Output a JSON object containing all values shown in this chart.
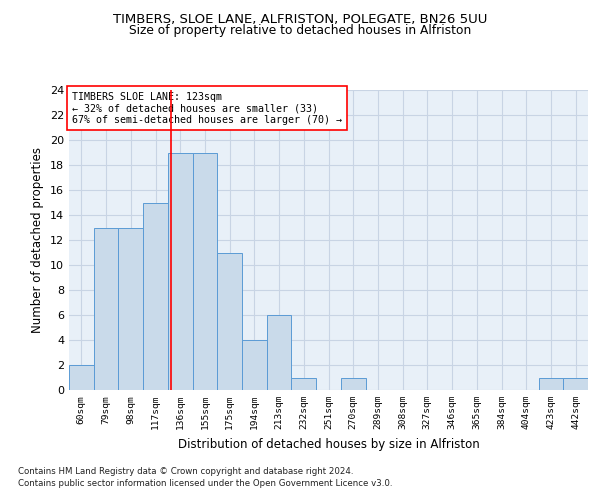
{
  "title1": "TIMBERS, SLOE LANE, ALFRISTON, POLEGATE, BN26 5UU",
  "title2": "Size of property relative to detached houses in Alfriston",
  "xlabel": "Distribution of detached houses by size in Alfriston",
  "ylabel": "Number of detached properties",
  "footnote1": "Contains HM Land Registry data © Crown copyright and database right 2024.",
  "footnote2": "Contains public sector information licensed under the Open Government Licence v3.0.",
  "annotation_line1": "TIMBERS SLOE LANE: 123sqm",
  "annotation_line2": "← 32% of detached houses are smaller (33)",
  "annotation_line3": "67% of semi-detached houses are larger (70) →",
  "bar_labels": [
    "60sqm",
    "79sqm",
    "98sqm",
    "117sqm",
    "136sqm",
    "155sqm",
    "175sqm",
    "194sqm",
    "213sqm",
    "232sqm",
    "251sqm",
    "270sqm",
    "289sqm",
    "308sqm",
    "327sqm",
    "346sqm",
    "365sqm",
    "384sqm",
    "404sqm",
    "423sqm",
    "442sqm"
  ],
  "bar_values": [
    2,
    13,
    13,
    15,
    19,
    19,
    11,
    4,
    6,
    1,
    0,
    1,
    0,
    0,
    0,
    0,
    0,
    0,
    0,
    1,
    1
  ],
  "bar_color": "#c9daea",
  "bar_edgecolor": "#5b9bd5",
  "grid_color": "#c8d4e4",
  "background_color": "#e8f0f8",
  "red_line_x": 3.62,
  "ylim": [
    0,
    24
  ],
  "yticks": [
    0,
    2,
    4,
    6,
    8,
    10,
    12,
    14,
    16,
    18,
    20,
    22,
    24
  ]
}
